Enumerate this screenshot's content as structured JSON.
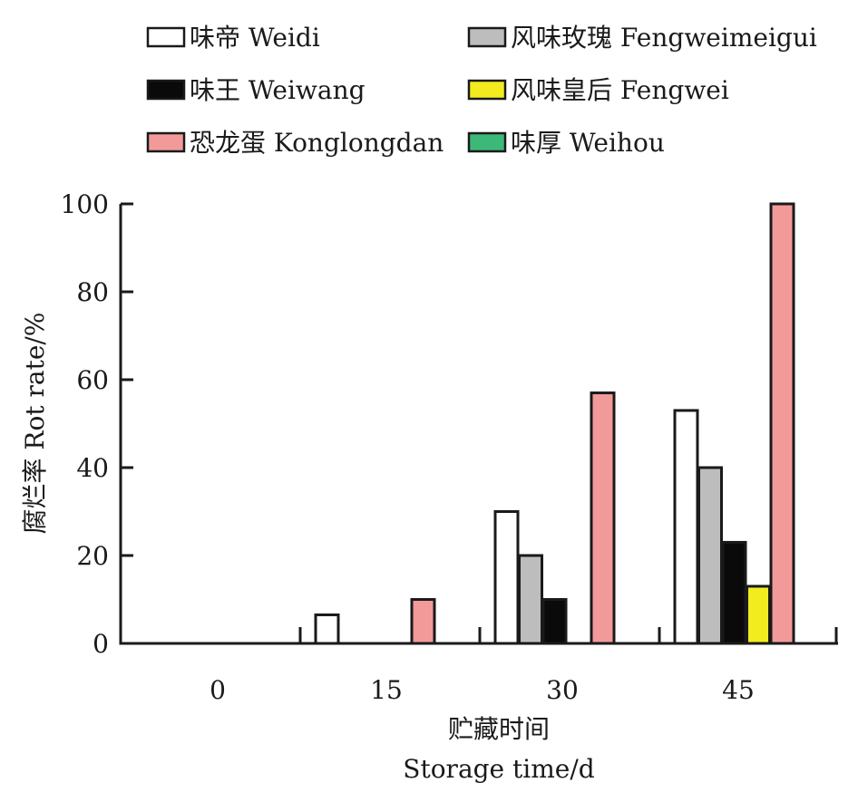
{
  "chart_data": {
    "type": "bar",
    "categories": [
      "0",
      "15",
      "30",
      "45"
    ],
    "series": [
      {
        "name": "味帝 Weidi",
        "color": "#ffffff",
        "values": [
          0,
          6.5,
          30,
          53
        ]
      },
      {
        "name": "风味玫瑰 Fengweimeigui",
        "color": "#bdbdbd",
        "values": [
          0,
          0,
          20,
          40
        ]
      },
      {
        "name": "味王 Weiwang",
        "color": "#0a0a0a",
        "values": [
          0,
          0,
          10,
          23
        ]
      },
      {
        "name": "风味皇后 Fengwei",
        "color": "#f2ec1f",
        "values": [
          0,
          0,
          0,
          13
        ]
      },
      {
        "name": "恐龙蛋 Konglongdan",
        "color": "#f29a9a",
        "values": [
          0,
          10,
          57,
          100
        ]
      },
      {
        "name": "味厚 Weihou",
        "color": "#3cb878",
        "values": [
          0,
          0,
          0,
          0
        ]
      }
    ],
    "yticks": [
      0,
      20,
      40,
      60,
      80,
      100
    ],
    "ylim": [
      0,
      100
    ],
    "ylabel": "腐烂率 Rot rate/%",
    "xlabel_zh": "贮藏时间",
    "xlabel_en": "Storage time/d",
    "legend_position": "top",
    "grid": false
  }
}
